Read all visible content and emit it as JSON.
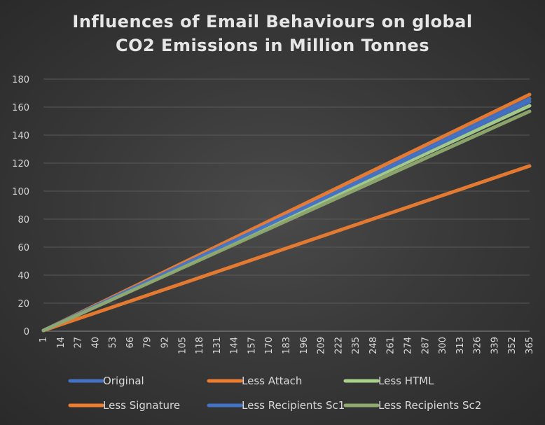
{
  "chart_data": {
    "type": "line",
    "title_lines": [
      "Influences of Email Behaviours on global",
      "CO2 Emissions in Million Tonnes"
    ],
    "x_ticks": [
      "1",
      "14",
      "27",
      "40",
      "53",
      "66",
      "79",
      "92",
      "105",
      "118",
      "131",
      "144",
      "157",
      "170",
      "183",
      "196",
      "209",
      "222",
      "235",
      "248",
      "261",
      "274",
      "287",
      "300",
      "313",
      "326",
      "339",
      "352",
      "365"
    ],
    "x_range": [
      1,
      365
    ],
    "y_ticks": [
      "0",
      "20",
      "40",
      "60",
      "80",
      "100",
      "120",
      "140",
      "160",
      "180"
    ],
    "ylim": [
      0,
      180
    ],
    "grid": "horizontal",
    "legend_position": "bottom",
    "series": [
      {
        "name": "Original",
        "color": "#4472c4",
        "x": [
          1,
          365
        ],
        "y": [
          0.5,
          166
        ],
        "legend_row": 0,
        "legend_col": 0
      },
      {
        "name": "Less Attach",
        "color": "#ed7d31",
        "x": [
          1,
          365
        ],
        "y": [
          0.5,
          169
        ],
        "legend_row": 0,
        "legend_col": 1
      },
      {
        "name": "Less HTML",
        "color": "#a9d18e",
        "x": [
          1,
          365
        ],
        "y": [
          0.5,
          161
        ],
        "legend_row": 0,
        "legend_col": 2
      },
      {
        "name": "Less Signature",
        "color": "#ed7d31",
        "x": [
          1,
          365
        ],
        "y": [
          0.5,
          118
        ],
        "legend_row": 1,
        "legend_col": 0
      },
      {
        "name": "Less Recipients Sc1",
        "color": "#4472c4",
        "x": [
          1,
          365
        ],
        "y": [
          0.5,
          164
        ],
        "legend_row": 1,
        "legend_col": 1
      },
      {
        "name": "Less Recipients Sc2",
        "color": "#8faa6f",
        "x": [
          1,
          365
        ],
        "y": [
          0.5,
          157
        ],
        "legend_row": 1,
        "legend_col": 2
      }
    ]
  }
}
